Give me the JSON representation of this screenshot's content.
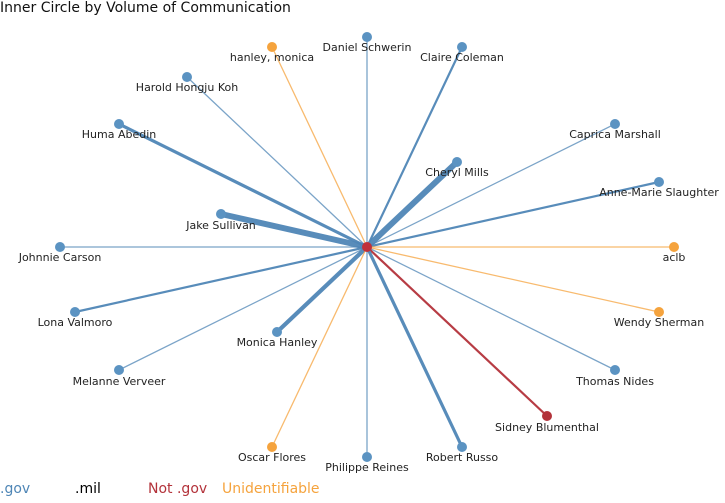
{
  "title": "Inner Circle by Volume of Communication",
  "colors": {
    "gov": "#4f86b6",
    "gov_node": "#5b93c2",
    "not_gov": "#b3323a",
    "unidentifiable": "#f5a33d",
    "center": "#c0303a"
  },
  "legend": [
    {
      "label": ".gov",
      "color": "#4f86b6"
    },
    {
      "label": ".mil",
      "color": "#000000"
    },
    {
      "label": "Not .gov",
      "color": "#b3323a"
    },
    {
      "label": "Unidentifiable",
      "color": "#f5a33d"
    }
  ],
  "nodes": [
    {
      "name": "Daniel Schwerin",
      "category": "gov",
      "volume": 1
    },
    {
      "name": "Claire Coleman",
      "category": "gov",
      "volume": 2
    },
    {
      "name": "hanley, monica",
      "category": "unidentifiable",
      "volume": 1
    },
    {
      "name": "Harold Hongju Koh",
      "category": "gov",
      "volume": 1
    },
    {
      "name": "Huma Abedin",
      "category": "gov",
      "volume": 3
    },
    {
      "name": "Caprica Marshall",
      "category": "gov",
      "volume": 1
    },
    {
      "name": "Cheryl Mills",
      "category": "gov",
      "volume": 6
    },
    {
      "name": "Anne-Marie Slaughter",
      "category": "gov",
      "volume": 2
    },
    {
      "name": "Jake Sullivan",
      "category": "gov",
      "volume": 6
    },
    {
      "name": "Johnnie Carson",
      "category": "gov",
      "volume": 1
    },
    {
      "name": "aclb",
      "category": "unidentifiable",
      "volume": 1
    },
    {
      "name": "Lona Valmoro",
      "category": "gov",
      "volume": 2
    },
    {
      "name": "Wendy Sherman",
      "category": "unidentifiable",
      "volume": 1
    },
    {
      "name": "Monica Hanley",
      "category": "gov",
      "volume": 4
    },
    {
      "name": "Melanne Verveer",
      "category": "gov",
      "volume": 1
    },
    {
      "name": "Thomas Nides",
      "category": "gov",
      "volume": 1
    },
    {
      "name": "Sidney Blumenthal",
      "category": "not_gov",
      "volume": 2
    },
    {
      "name": "Oscar Flores",
      "category": "unidentifiable",
      "volume": 1
    },
    {
      "name": "Philippe Reines",
      "category": "gov",
      "volume": 1
    },
    {
      "name": "Robert Russo",
      "category": "gov",
      "volume": 3
    }
  ]
}
